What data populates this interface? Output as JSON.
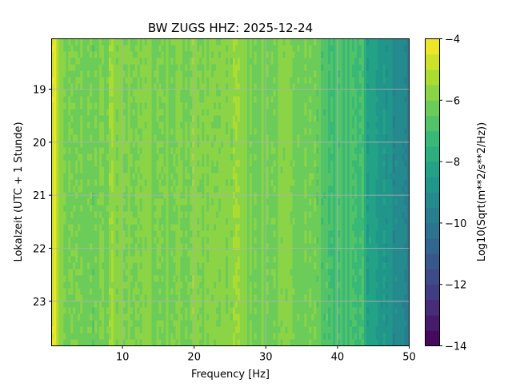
{
  "chart_data": {
    "type": "heatmap",
    "title": "BW ZUGS  HHZ: 2025-12-24",
    "xlabel": "Frequency [Hz]",
    "ylabel": "Lokalzeit (UTC + 1 Stunde)",
    "colorbar_label": "Log10(Sqrt(m**2/s**2/Hz))",
    "xlim": [
      0.1,
      50
    ],
    "ylim": [
      18.05,
      23.84
    ],
    "y_inverted": true,
    "xticks": [
      10,
      20,
      30,
      40,
      50
    ],
    "yticks": [
      19,
      20,
      21,
      22,
      23
    ],
    "clim": [
      -14,
      -4
    ],
    "colorbar_ticks": [
      -4,
      -6,
      -8,
      -10,
      -12,
      -14
    ],
    "colorbar_tick_labels": [
      "−4",
      "−6",
      "−8",
      "−10",
      "−12",
      "−14"
    ],
    "colormap": "viridis",
    "colormap_levels": 20,
    "grid": true,
    "mean_spectrum": {
      "frequency_hz": [
        0.1,
        0.6,
        1.2,
        2,
        5,
        8,
        8.5,
        9,
        12,
        15,
        19.5,
        20,
        20.5,
        25,
        26,
        27,
        30,
        35,
        37,
        38,
        40,
        43,
        43.5,
        44,
        45,
        47,
        48.5,
        50
      ],
      "log10_amplitude": [
        -4.3,
        -4.5,
        -5.6,
        -6.1,
        -6.2,
        -6.1,
        -5.4,
        -6.0,
        -5.9,
        -6.0,
        -6.0,
        -5.4,
        -6.0,
        -5.9,
        -5.3,
        -6.0,
        -6.1,
        -6.0,
        -6.2,
        -6.8,
        -7.0,
        -7.1,
        -6.7,
        -8.2,
        -8.4,
        -8.8,
        -9.5,
        -9.7
      ]
    }
  }
}
